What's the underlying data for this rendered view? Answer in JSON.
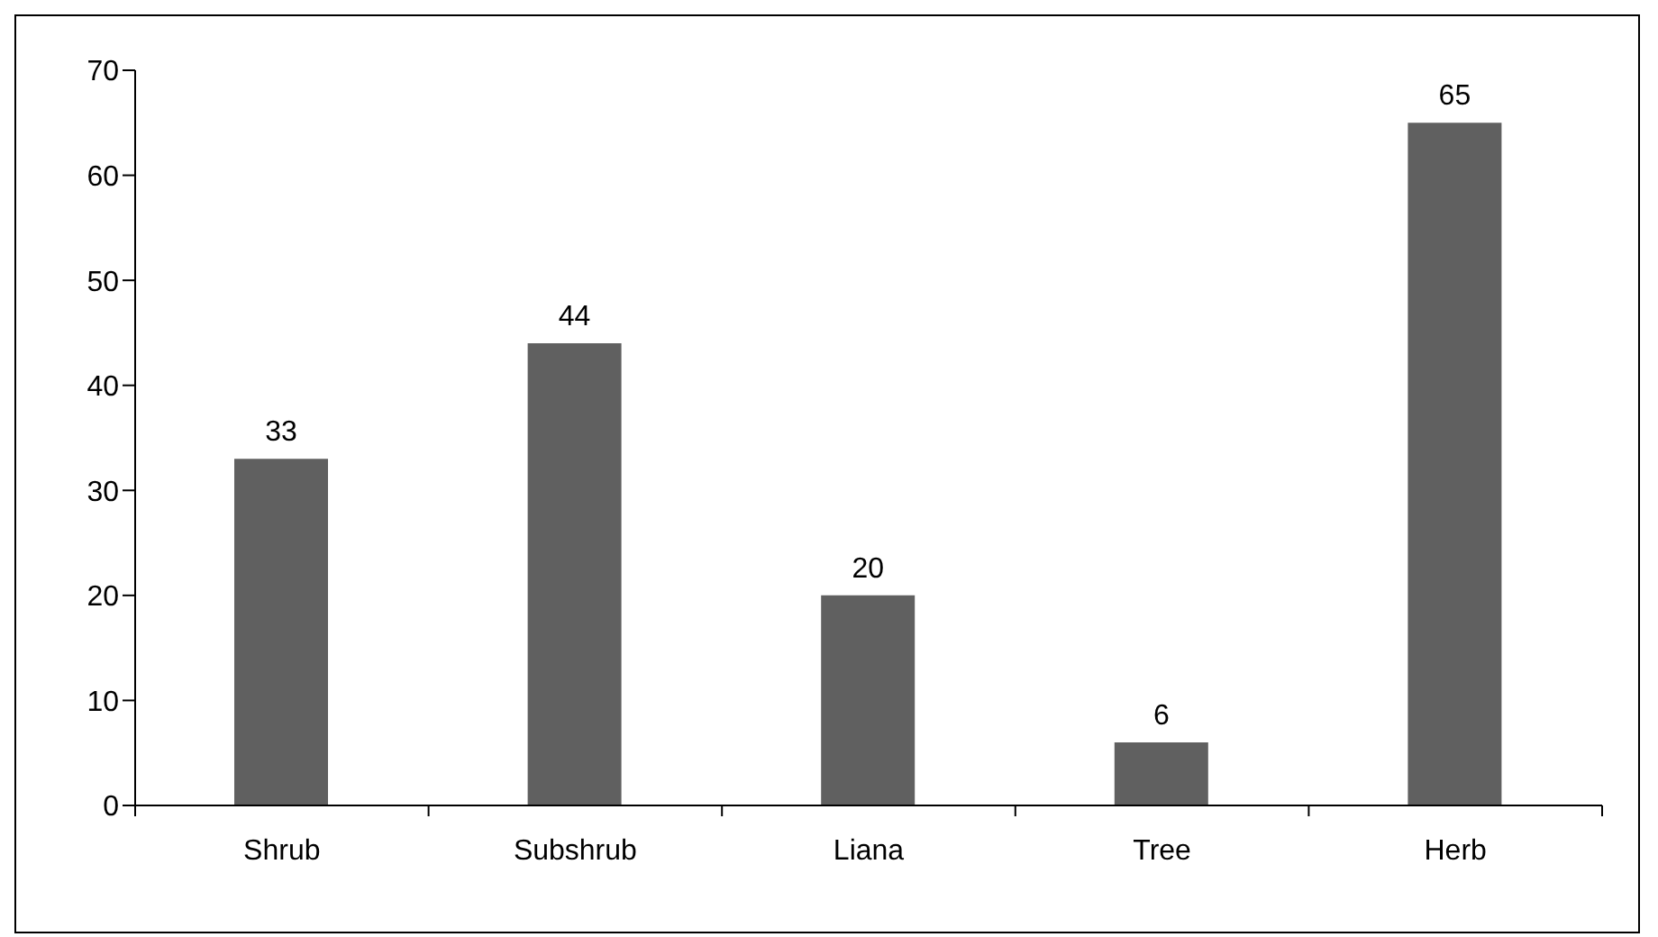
{
  "chart_data": {
    "type": "bar",
    "categories": [
      "Shrub",
      "Subshrub",
      "Liana",
      "Tree",
      "Herb"
    ],
    "values": [
      33,
      44,
      20,
      6,
      65
    ],
    "color": "#606060",
    "ylim": [
      0,
      70
    ],
    "yticks": [
      0,
      10,
      20,
      30,
      40,
      50,
      60,
      70
    ],
    "grid": false,
    "data_labels": true
  }
}
